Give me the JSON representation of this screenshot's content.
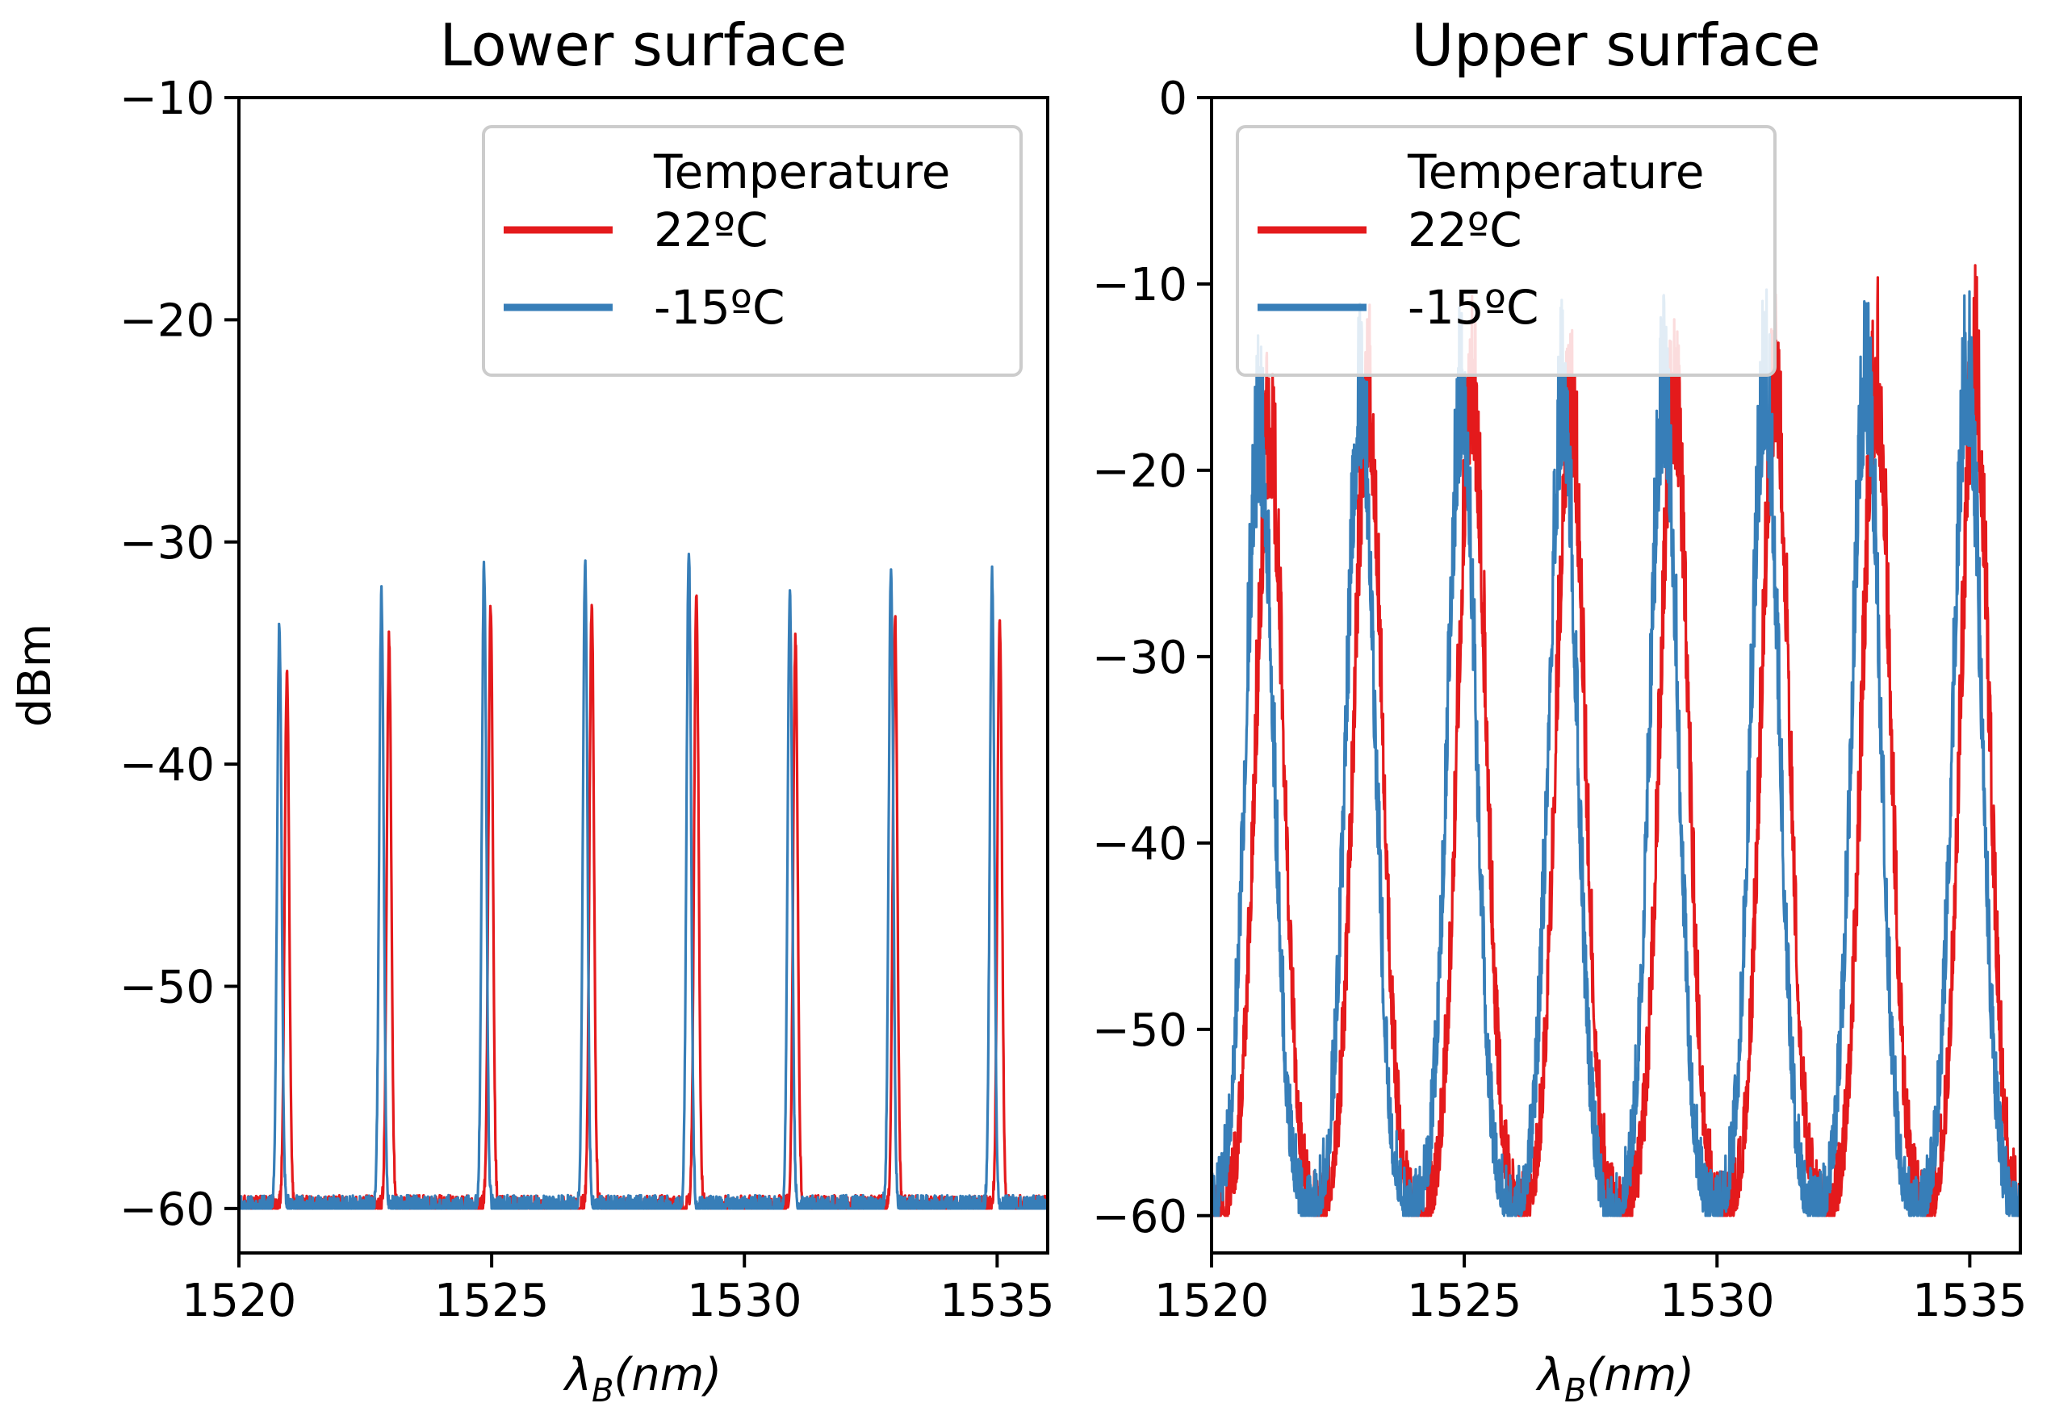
{
  "chart_data": [
    {
      "type": "line",
      "title": "Lower surface",
      "xlabel_symbol": "λ",
      "xlabel_sub": "B",
      "xlabel_unit": "(nm)",
      "ylabel": "dBm",
      "xlim": [
        1520,
        1536
      ],
      "ylim": [
        -62,
        -10
      ],
      "xticks": [
        "1520",
        "1525",
        "1530",
        "1535"
      ],
      "yticks": [
        "−10",
        "−20",
        "−30",
        "−40",
        "−50",
        "−60"
      ],
      "xtick_values": [
        1520,
        1525,
        1530,
        1535
      ],
      "ytick_values": [
        -10,
        -20,
        -30,
        -40,
        -50,
        -60
      ],
      "legend": {
        "title": "Temperature",
        "position": "upper right"
      },
      "baseline": -60,
      "noise": 0.6,
      "peak_width": 0.09,
      "series": [
        {
          "name": "22ºC",
          "color": "#e41a1c",
          "peak_x": [
            1520.95,
            1522.97,
            1524.98,
            1526.98,
            1529.05,
            1531.01,
            1532.98,
            1535.05
          ],
          "peak_y": [
            -36,
            -34.5,
            -33,
            -33,
            -32.5,
            -34.5,
            -33.5,
            -33.5
          ]
        },
        {
          "name": "-15ºC",
          "color": "#377eb8",
          "peak_x": [
            1520.8,
            1522.82,
            1524.85,
            1526.85,
            1528.9,
            1530.9,
            1532.9,
            1534.9
          ],
          "peak_y": [
            -34,
            -32.5,
            -31.2,
            -31,
            -30.5,
            -32.3,
            -31.3,
            -31.7
          ]
        }
      ]
    },
    {
      "type": "line",
      "title": "Upper surface",
      "xlabel_symbol": "λ",
      "xlabel_sub": "B",
      "xlabel_unit": "(nm)",
      "ylabel": "",
      "xlim": [
        1520,
        1536
      ],
      "ylim": [
        -62,
        0
      ],
      "xticks": [
        "1520",
        "1525",
        "1530",
        "1535"
      ],
      "yticks": [
        "0",
        "−10",
        "−20",
        "−30",
        "−40",
        "−50",
        "−60"
      ],
      "xtick_values": [
        1520,
        1525,
        1530,
        1535
      ],
      "ytick_values": [
        0,
        -10,
        -20,
        -30,
        -40,
        -50,
        -60
      ],
      "legend": {
        "title": "Temperature",
        "position": "upper left"
      },
      "baseline": -60,
      "noise": 1.8,
      "peak_width": 0.28,
      "series": [
        {
          "name": "22ºC",
          "color": "#e41a1c",
          "peak_x": [
            1521.15,
            1523.1,
            1525.15,
            1527.1,
            1529.15,
            1531.15,
            1533.15,
            1535.1
          ],
          "peak_y": [
            -20,
            -17.5,
            -17.5,
            -18,
            -17.5,
            -17.3,
            -16.8,
            -16.5
          ]
        },
        {
          "name": "-15ºC",
          "color": "#377eb8",
          "peak_x": [
            1520.95,
            1522.95,
            1524.95,
            1526.95,
            1528.95,
            1530.95,
            1532.95,
            1534.95
          ],
          "peak_y": [
            -20,
            -17.5,
            -17.8,
            -18,
            -17.6,
            -17.3,
            -16.8,
            -16.5
          ]
        }
      ]
    }
  ]
}
